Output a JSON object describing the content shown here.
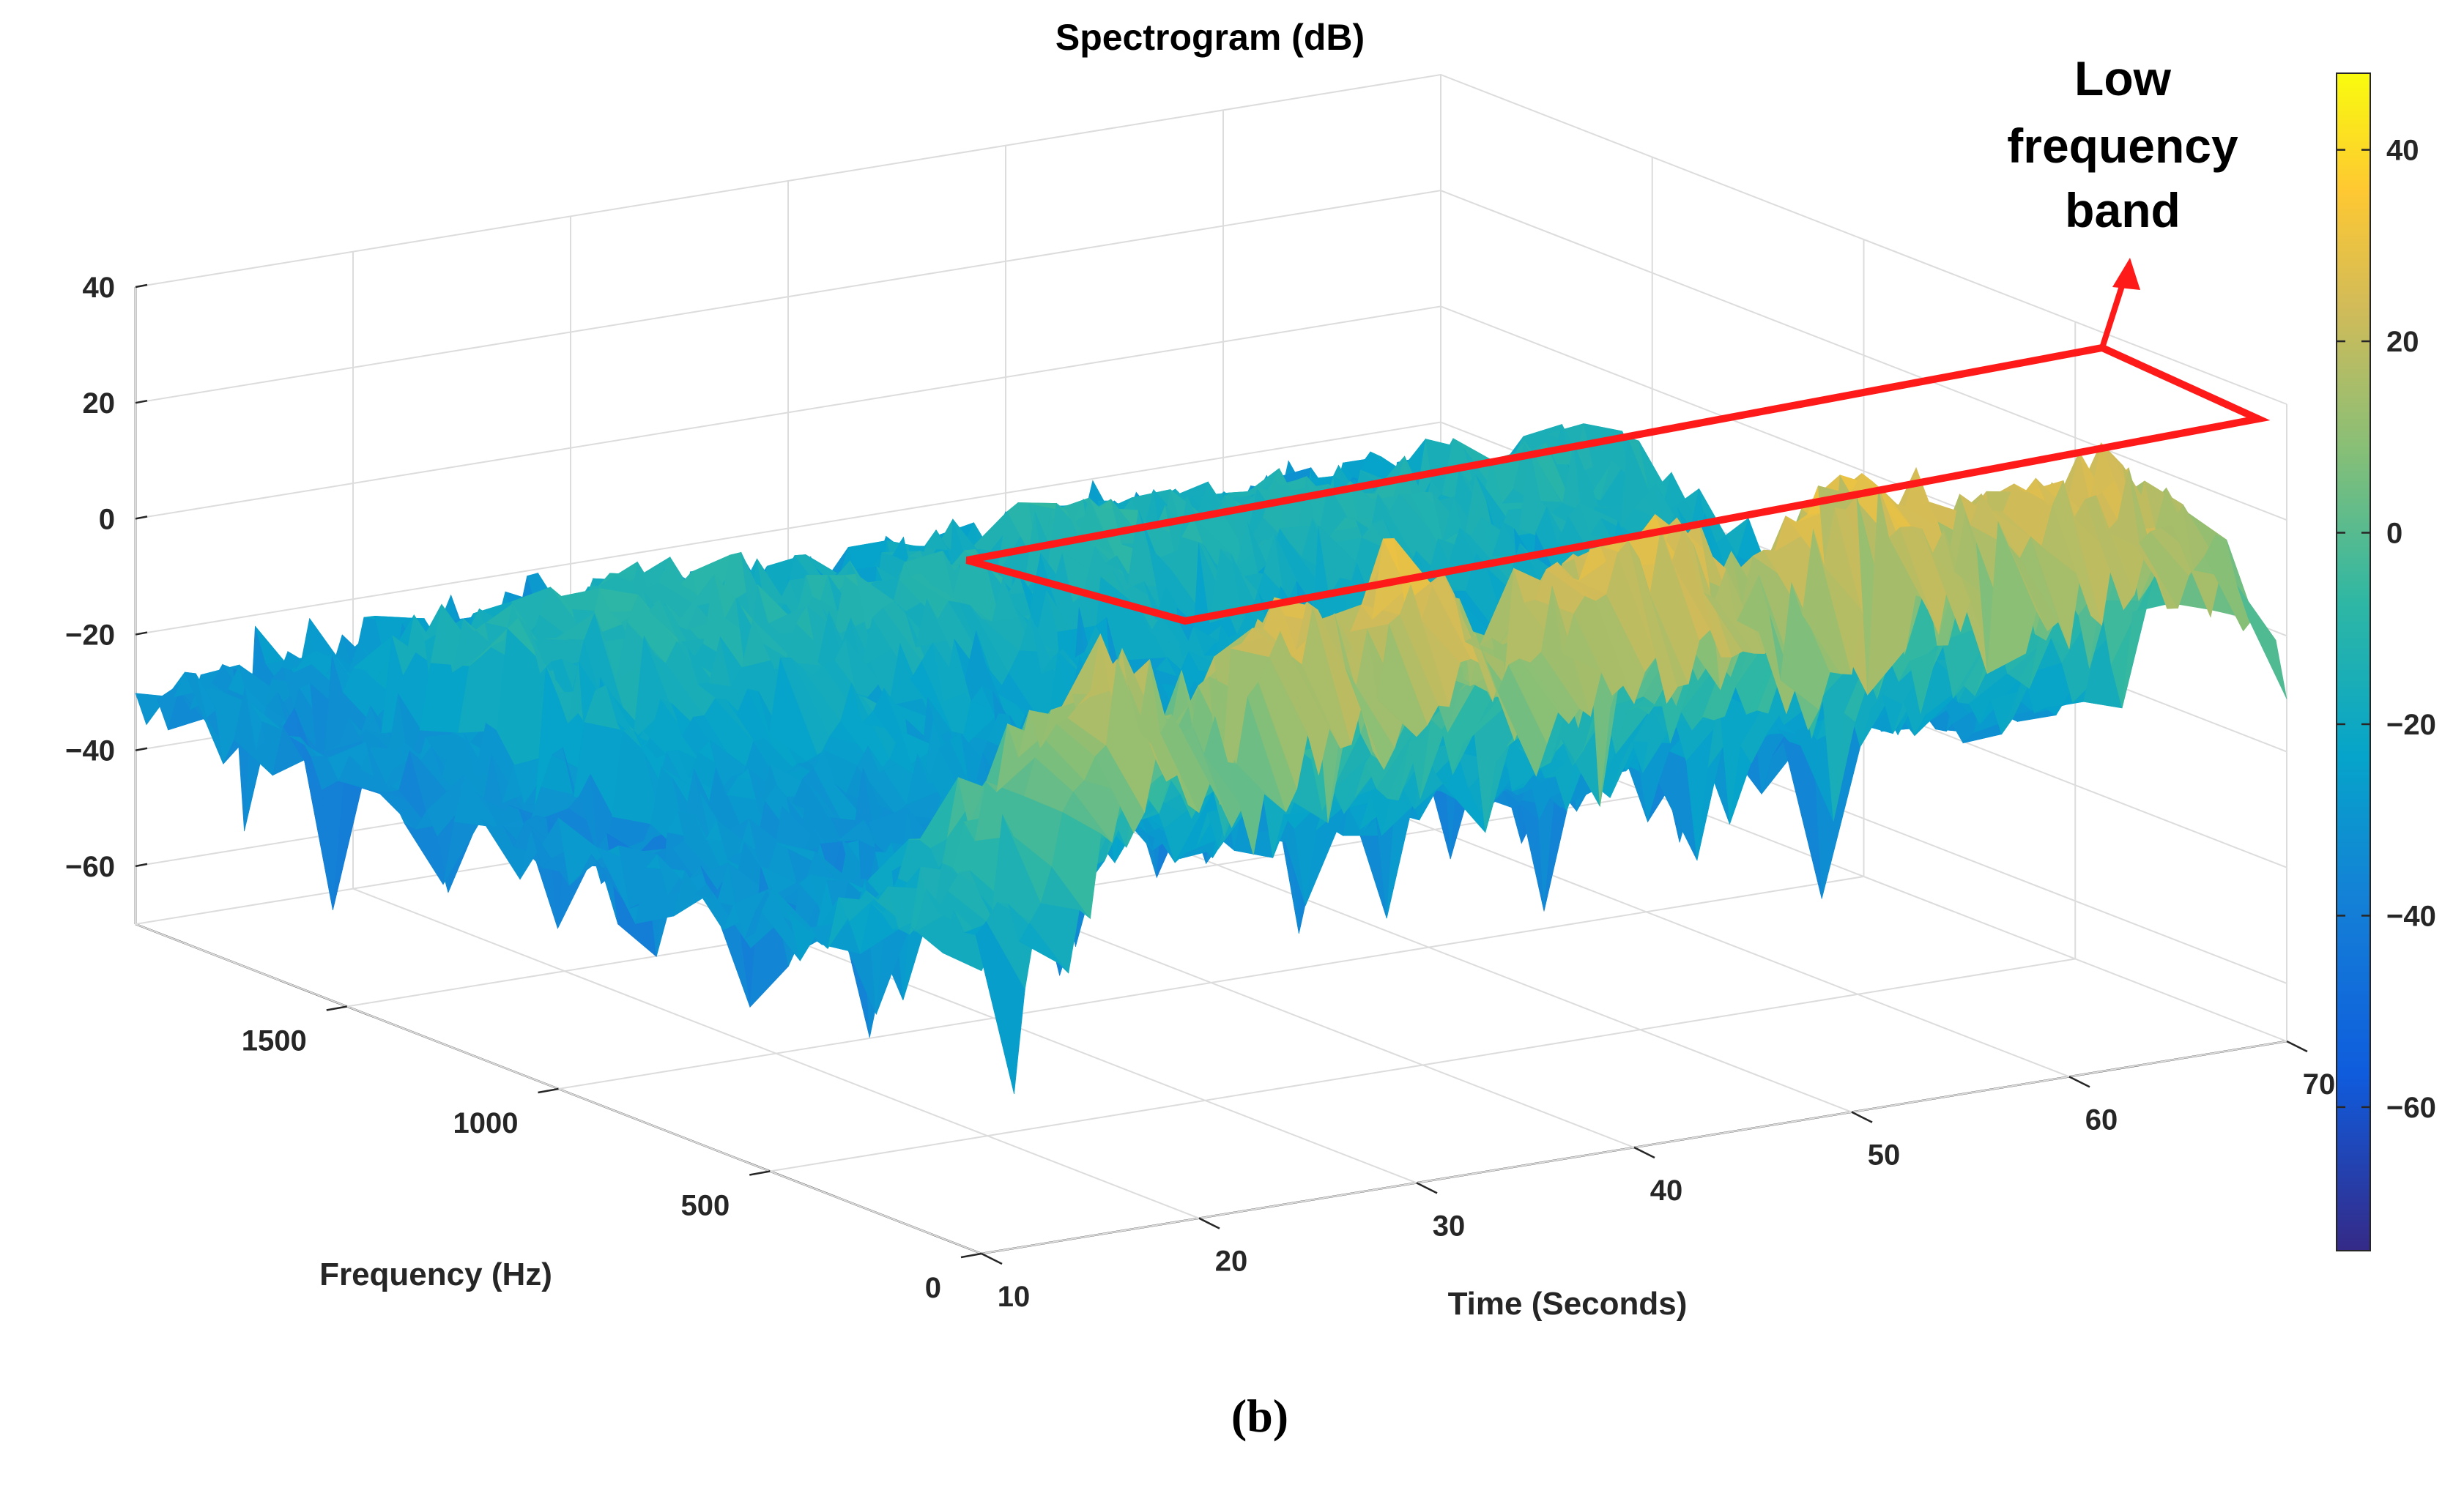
{
  "chart_data": {
    "type": "surface",
    "title": "Spectrogram (dB)",
    "xlabel": "Time (Seconds)",
    "ylabel": "Frequency (Hz)",
    "zlabel": "",
    "xlim": [
      10,
      70
    ],
    "ylim": [
      0,
      2000
    ],
    "zlim": [
      -70,
      40
    ],
    "x_ticks": [
      10,
      20,
      30,
      40,
      50,
      60,
      70
    ],
    "y_ticks": [
      0,
      500,
      1000,
      1500
    ],
    "z_ticks": [
      -60,
      -40,
      -20,
      0,
      20,
      40
    ],
    "z_tick_labels": [
      "−60",
      "−40",
      "−20",
      "0",
      "20",
      "40"
    ],
    "colorbar": {
      "colormap": "parula",
      "range": [
        -75,
        48
      ],
      "ticks": [
        -60,
        -40,
        -20,
        0,
        20,
        40
      ],
      "tick_labels": [
        "−60",
        "−40",
        "−20",
        "0",
        "20",
        "40"
      ]
    },
    "surface_profile": {
      "description": "approximate peak dB per time step along low-frequency band",
      "time": [
        10,
        12,
        14,
        16,
        18,
        20,
        22,
        24,
        26,
        28,
        30,
        32,
        34,
        36,
        38,
        40,
        42,
        44,
        46,
        48,
        50,
        52,
        54,
        56,
        58,
        60,
        62,
        64,
        66,
        68,
        70
      ],
      "low_band_db": [
        -15,
        -14,
        -15,
        10,
        22,
        20,
        5,
        15,
        25,
        24,
        18,
        30,
        28,
        12,
        22,
        25,
        28,
        30,
        26,
        18,
        24,
        30,
        32,
        28,
        20,
        26,
        30,
        28,
        24,
        18,
        5
      ],
      "high_band_db": [
        -30,
        -32,
        -30,
        -28,
        -30,
        -31,
        -29,
        -30,
        -28,
        -27,
        -30,
        -29,
        -31,
        -28,
        -30,
        -29,
        -30,
        -28,
        -29,
        -31,
        -30,
        -29,
        -28,
        -30,
        -31,
        -29,
        -30,
        -28,
        -29,
        -30,
        -31
      ]
    },
    "annotations": [
      {
        "text_lines": [
          "Low",
          "frequency",
          "band"
        ],
        "target": "low-frequency band ridge",
        "color": "#ff0000"
      }
    ],
    "caption": "(b)"
  }
}
